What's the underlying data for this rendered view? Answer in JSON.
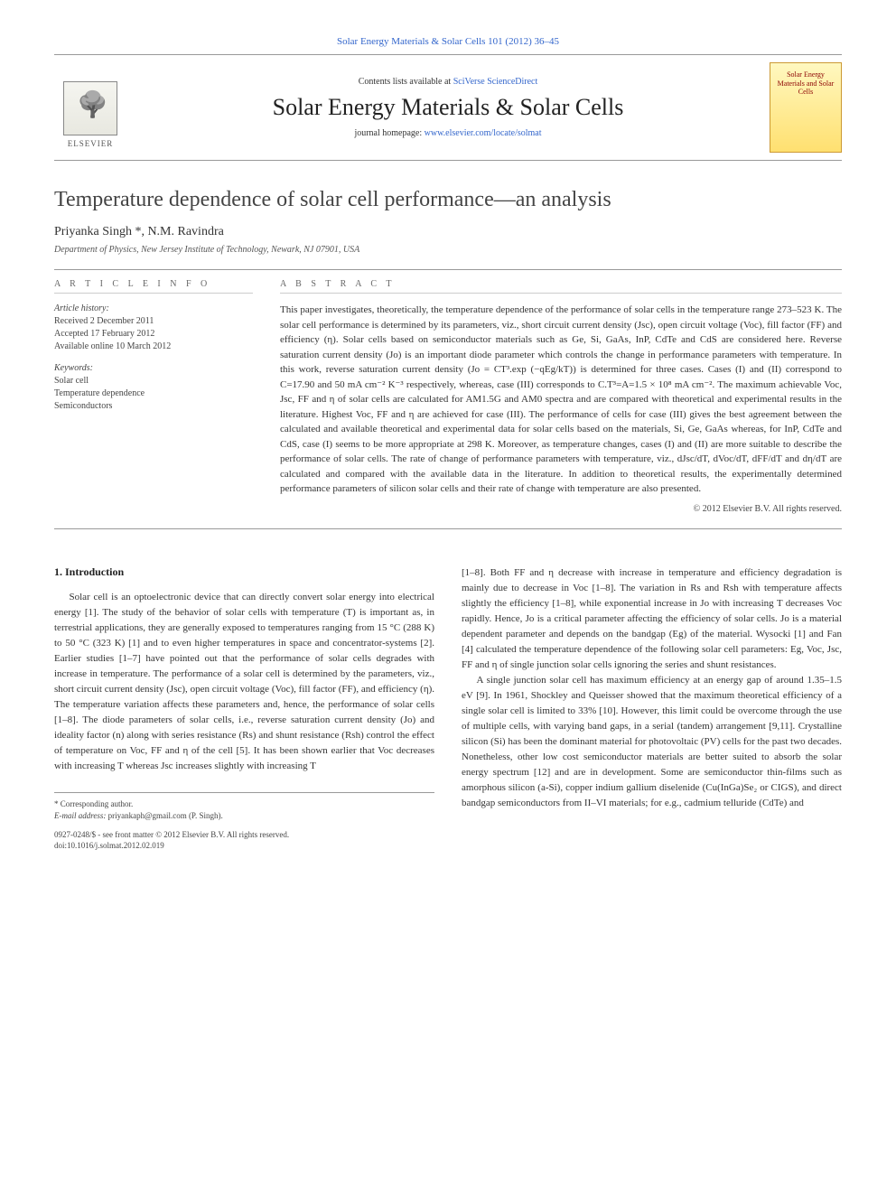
{
  "header": {
    "citation": "Solar Energy Materials & Solar Cells 101 (2012) 36–45",
    "contents_prefix": "Contents lists available at ",
    "contents_link_text": "SciVerse ScienceDirect",
    "journal_name": "Solar Energy Materials & Solar Cells",
    "homepage_prefix": "journal homepage: ",
    "homepage_link_text": "www.elsevier.com/locate/solmat",
    "publisher_logo_text": "ELSEVIER",
    "cover_title": "Solar Energy Materials and Solar Cells"
  },
  "article": {
    "title": "Temperature dependence of solar cell performance—an analysis",
    "authors_html": "Priyanka Singh *, N.M. Ravindra",
    "affiliation": "Department of Physics, New Jersey Institute of Technology, Newark, NJ 07901, USA"
  },
  "info": {
    "heading": "A R T I C L E   I N F O",
    "history_label": "Article history:",
    "received": "Received 2 December 2011",
    "accepted": "Accepted 17 February 2012",
    "online": "Available online 10 March 2012",
    "keywords_label": "Keywords:",
    "keywords": [
      "Solar cell",
      "Temperature dependence",
      "Semiconductors"
    ]
  },
  "abstract": {
    "heading": "A B S T R A C T",
    "text": "This paper investigates, theoretically, the temperature dependence of the performance of solar cells in the temperature range 273–523 K. The solar cell performance is determined by its parameters, viz., short circuit current density (Jsc), open circuit voltage (Voc), fill factor (FF) and efficiency (η). Solar cells based on semiconductor materials such as Ge, Si, GaAs, InP, CdTe and CdS are considered here. Reverse saturation current density (Jo) is an important diode parameter which controls the change in performance parameters with temperature. In this work, reverse saturation current density (Jo = CT³.exp (−qEg/kT)) is determined for three cases. Cases (I) and (II) correspond to C=17.90 and 50 mA cm⁻² K⁻³ respectively, whereas, case (III) corresponds to C.T³=A=1.5 × 10⁸ mA cm⁻². The maximum achievable Voc, Jsc, FF and η of solar cells are calculated for AM1.5G and AM0 spectra and are compared with theoretical and experimental results in the literature. Highest Voc, FF and η are achieved for case (III). The performance of cells for case (III) gives the best agreement between the calculated and available theoretical and experimental data for solar cells based on the materials, Si, Ge, GaAs whereas, for InP, CdTe and CdS, case (I) seems to be more appropriate at 298 K. Moreover, as temperature changes, cases (I) and (II) are more suitable to describe the performance of solar cells. The rate of change of performance parameters with temperature, viz., dJsc/dT, dVoc/dT, dFF/dT and dη/dT are calculated and compared with the available data in the literature. In addition to theoretical results, the experimentally determined performance parameters of silicon solar cells and their rate of change with temperature are also presented.",
    "copyright": "© 2012 Elsevier B.V. All rights reserved."
  },
  "body": {
    "section1_heading": "1. Introduction",
    "col1_p1": "Solar cell is an optoelectronic device that can directly convert solar energy into electrical energy [1]. The study of the behavior of solar cells with temperature (T) is important as, in terrestrial applications, they are generally exposed to temperatures ranging from 15 °C (288 K) to 50 °C (323 K) [1] and to even higher temperatures in space and concentrator-systems [2]. Earlier studies [1–7] have pointed out that the performance of solar cells degrades with increase in temperature. The performance of a solar cell is determined by the parameters, viz., short circuit current density (Jsc), open circuit voltage (Voc), fill factor (FF), and efficiency (η). The temperature variation affects these parameters and, hence, the performance of solar cells [1–8]. The diode parameters of solar cells, i.e., reverse saturation current density (Jo) and ideality factor (n) along with series resistance (Rs) and shunt resistance (Rsh) control the effect of temperature on Voc, FF and η of the cell [5]. It has been shown earlier that Voc decreases with increasing T whereas Jsc increases slightly with increasing T",
    "col2_p1": "[1–8]. Both FF and η decrease with increase in temperature and efficiency degradation is mainly due to decrease in Voc [1–8]. The variation in Rs and Rsh with temperature affects slightly the efficiency [1–8], while exponential increase in Jo with increasing T decreases Voc rapidly. Hence, Jo is a critical parameter affecting the efficiency of solar cells. Jo is a material dependent parameter and depends on the bandgap (Eg) of the material. Wysocki [1] and Fan [4] calculated the temperature dependence of the following solar cell parameters: Eg, Voc, Jsc, FF and η of single junction solar cells ignoring the series and shunt resistances.",
    "col2_p2": "A single junction solar cell has maximum efficiency at an energy gap of around 1.35–1.5 eV [9]. In 1961, Shockley and Queisser showed that the maximum theoretical efficiency of a single solar cell is limited to 33% [10]. However, this limit could be overcome through the use of multiple cells, with varying band gaps, in a serial (tandem) arrangement [9,11]. Crystalline silicon (Si) has been the dominant material for photovoltaic (PV) cells for the past two decades. Nonetheless, other low cost semiconductor materials are better suited to absorb the solar energy spectrum [12] and are in development. Some are semiconductor thin-films such as amorphous silicon (a-Si), copper indium gallium diselenide (Cu(InGa)Se₂ or CIGS), and direct bandgap semiconductors from II–VI materials; for e.g., cadmium telluride (CdTe) and"
  },
  "footnotes": {
    "corr_author": "* Corresponding author.",
    "email_label": "E-mail address:",
    "email": "priyankaph@gmail.com (P. Singh)."
  },
  "footer": {
    "issn_line": "0927-0248/$ - see front matter © 2012 Elsevier B.V. All rights reserved.",
    "doi_line": "doi:10.1016/j.solmat.2012.02.019"
  },
  "colors": {
    "link": "#3366cc",
    "text": "#333333",
    "rule": "#999999"
  }
}
